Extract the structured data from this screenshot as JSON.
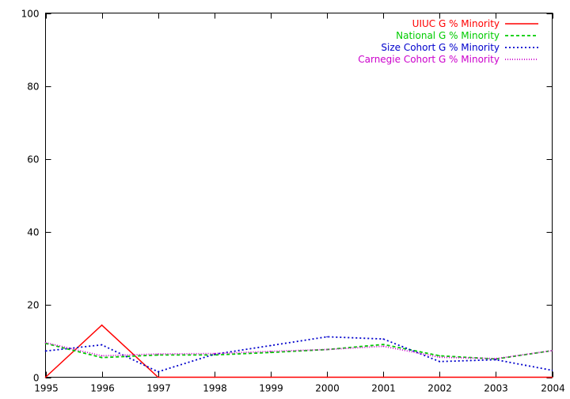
{
  "chart_data": {
    "type": "line",
    "title": "",
    "xlabel": "",
    "ylabel": "",
    "x": [
      1995,
      1996,
      1997,
      1998,
      1999,
      2000,
      2001,
      2002,
      2003,
      2004
    ],
    "xlim": [
      1995,
      2004
    ],
    "ylim": [
      0,
      100
    ],
    "xticks": [
      "1995",
      "1996",
      "1997",
      "1998",
      "1999",
      "2000",
      "2001",
      "2002",
      "2003",
      "2004"
    ],
    "yticks": [
      "0",
      "20",
      "40",
      "60",
      "80",
      "100"
    ],
    "ytick_values": [
      0,
      20,
      40,
      60,
      80,
      100
    ],
    "grid": false,
    "legend_position": "top-right",
    "series": [
      {
        "name": "UIUC G % Minority",
        "color": "#ff0000",
        "dash": "solid",
        "values": [
          0,
          14.3,
          0,
          0,
          0,
          0,
          0,
          0,
          0,
          0
        ]
      },
      {
        "name": "National G % Minority",
        "color": "#00cc00",
        "dash": "dashed",
        "values": [
          9.3,
          5.4,
          6.1,
          6.1,
          6.8,
          7.6,
          9.0,
          5.9,
          5.0,
          7.3
        ]
      },
      {
        "name": "Size Cohort G % Minority",
        "color": "#0000cc",
        "dash": "dotted",
        "values": [
          7.2,
          8.9,
          1.5,
          6.3,
          8.7,
          11.1,
          10.5,
          4.3,
          4.8,
          1.9
        ]
      },
      {
        "name": "Carnegie Cohort G % Minority",
        "color": "#cc00cc",
        "dash": "fine-dotted",
        "values": [
          9.5,
          5.9,
          6.4,
          6.5,
          7.1,
          7.6,
          8.5,
          5.5,
          5.1,
          7.3
        ]
      }
    ]
  }
}
